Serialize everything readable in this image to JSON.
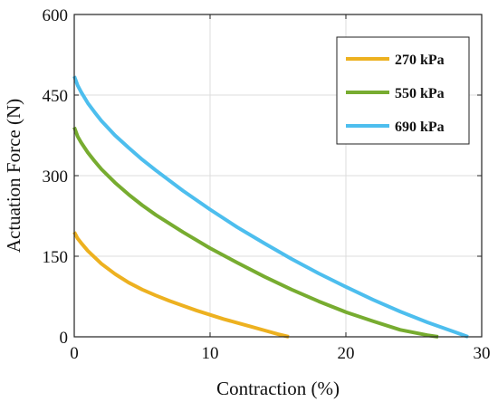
{
  "chart_data": {
    "type": "line",
    "title": "",
    "xlabel": "Contraction (%)",
    "ylabel": "Actuation Force (N)",
    "xlim": [
      0,
      30
    ],
    "ylim": [
      0,
      600
    ],
    "xticks": [
      0,
      10,
      20,
      30
    ],
    "yticks": [
      0,
      150,
      300,
      450,
      600
    ],
    "grid": true,
    "legend_position": "top-right",
    "series": [
      {
        "name": "270 kPa",
        "color": "#EDB120",
        "points": [
          [
            0,
            195
          ],
          [
            0.25,
            183
          ],
          [
            0.5,
            175
          ],
          [
            1,
            160
          ],
          [
            1.5,
            148
          ],
          [
            2,
            136
          ],
          [
            3,
            117
          ],
          [
            4,
            101
          ],
          [
            5,
            88
          ],
          [
            6,
            77
          ],
          [
            7,
            67
          ],
          [
            8,
            58
          ],
          [
            9,
            49
          ],
          [
            10,
            41
          ],
          [
            11,
            33
          ],
          [
            12,
            26
          ],
          [
            13,
            19
          ],
          [
            14,
            12
          ],
          [
            15,
            5
          ],
          [
            15.8,
            0
          ]
        ]
      },
      {
        "name": "550 kPa",
        "color": "#77AC30",
        "points": [
          [
            0,
            390
          ],
          [
            0.25,
            373
          ],
          [
            0.5,
            362
          ],
          [
            1,
            343
          ],
          [
            1.5,
            327
          ],
          [
            2,
            312
          ],
          [
            3,
            287
          ],
          [
            4,
            265
          ],
          [
            5,
            245
          ],
          [
            6,
            227
          ],
          [
            8,
            195
          ],
          [
            10,
            165
          ],
          [
            12,
            138
          ],
          [
            14,
            112
          ],
          [
            16,
            88
          ],
          [
            18,
            66
          ],
          [
            20,
            46
          ],
          [
            22,
            29
          ],
          [
            24,
            13
          ],
          [
            26,
            3
          ],
          [
            26.8,
            0
          ]
        ]
      },
      {
        "name": "690 kPa",
        "color": "#4DBEEE",
        "points": [
          [
            0,
            485
          ],
          [
            0.25,
            468
          ],
          [
            0.5,
            456
          ],
          [
            1,
            435
          ],
          [
            1.5,
            418
          ],
          [
            2,
            402
          ],
          [
            3,
            375
          ],
          [
            4,
            352
          ],
          [
            5,
            330
          ],
          [
            6,
            310
          ],
          [
            8,
            272
          ],
          [
            10,
            237
          ],
          [
            12,
            204
          ],
          [
            14,
            174
          ],
          [
            16,
            145
          ],
          [
            18,
            118
          ],
          [
            20,
            93
          ],
          [
            22,
            69
          ],
          [
            24,
            47
          ],
          [
            26,
            27
          ],
          [
            28,
            9
          ],
          [
            29,
            0
          ]
        ]
      }
    ]
  }
}
